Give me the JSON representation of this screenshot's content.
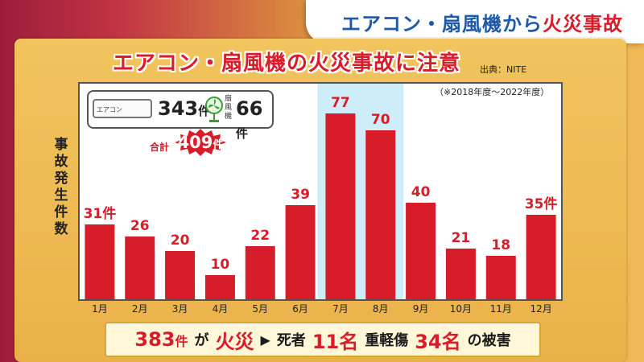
{
  "header": {
    "prefix": "エアコン・扇風機から",
    "highlight": "火災事故"
  },
  "title": "エアコン・扇風機の火災事故に注意",
  "source": "出典：NITE",
  "period": "（※2018年度〜2022年度）",
  "ylabel": "事故発生件数",
  "legend": {
    "ac_icon_label": "エアコン",
    "ac_count": "343",
    "ac_unit": "件",
    "fan_label": "扇風機",
    "fan_count": "66",
    "fan_unit": "件",
    "total_label": "合計",
    "total_count": "409",
    "total_unit": "件"
  },
  "chart_data": {
    "type": "bar",
    "categories": [
      "1月",
      "2月",
      "3月",
      "4月",
      "5月",
      "6月",
      "7月",
      "8月",
      "9月",
      "10月",
      "11月",
      "12月"
    ],
    "values": [
      31,
      26,
      20,
      10,
      22,
      39,
      77,
      70,
      40,
      21,
      18,
      35
    ],
    "value_labels": [
      "31件",
      "26",
      "20",
      "10",
      "22",
      "39",
      "77",
      "70",
      "40",
      "21",
      "18",
      "35件"
    ],
    "highlight_categories": [
      "7月",
      "8月"
    ],
    "ylim": [
      0,
      90
    ],
    "grid": false,
    "colors": {
      "bar": "#d71c2a",
      "highlight_band": "#cdeef8"
    }
  },
  "summary": {
    "fire_count": "383",
    "fire_unit": "件",
    "fire_text_1": "が",
    "fire_text_2": "火災",
    "arrow": "▶",
    "death_label": "死者",
    "death_count": "11名",
    "injury_label": "重軽傷",
    "injury_count": "34名",
    "damage_text": "の被害"
  }
}
